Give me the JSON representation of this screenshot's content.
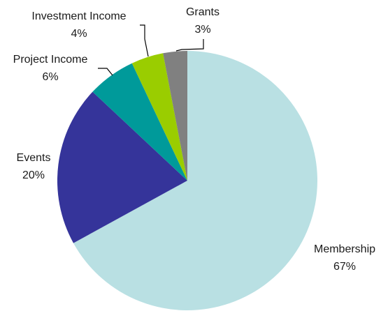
{
  "chart_data": {
    "type": "pie",
    "title": "",
    "slices": [
      {
        "label": "Membership",
        "value": 67,
        "display": "67%",
        "color": "#b9e0e3"
      },
      {
        "label": "Events",
        "value": 20,
        "display": "20%",
        "color": "#35349a"
      },
      {
        "label": "Project Income",
        "value": 6,
        "display": "6%",
        "color": "#009a9a"
      },
      {
        "label": "Investment Income",
        "value": 4,
        "display": "4%",
        "color": "#9acd00"
      },
      {
        "label": "Grants",
        "value": 3,
        "display": "3%",
        "color": "#808080"
      }
    ],
    "legend": "none",
    "start": "12 o'clock, clockwise"
  }
}
